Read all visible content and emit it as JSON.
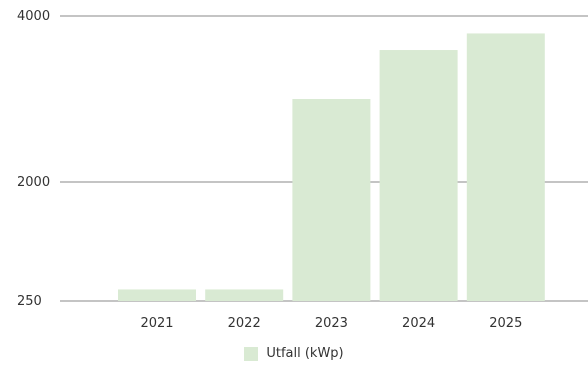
{
  "chart_data": {
    "type": "bar",
    "categories": [
      "2021",
      "2022",
      "2023",
      "2024",
      "2025"
    ],
    "series": [
      {
        "name": "Utfall (kWp)",
        "values": [
          420,
          420,
          3000,
          3590,
          3790
        ]
      }
    ],
    "title": "",
    "xlabel": "",
    "ylabel": "",
    "y_ticks": [
      "250",
      "2000",
      "4000"
    ],
    "y_tick_values": [
      250,
      2000,
      4000
    ],
    "y_scale": "nonlinear",
    "grid": true,
    "legend": "bottom",
    "colors": {
      "bar": "#d9ead3",
      "gridline": "#888888",
      "text": "#333333"
    }
  },
  "legend": {
    "label": "Utfall (kWp)"
  }
}
